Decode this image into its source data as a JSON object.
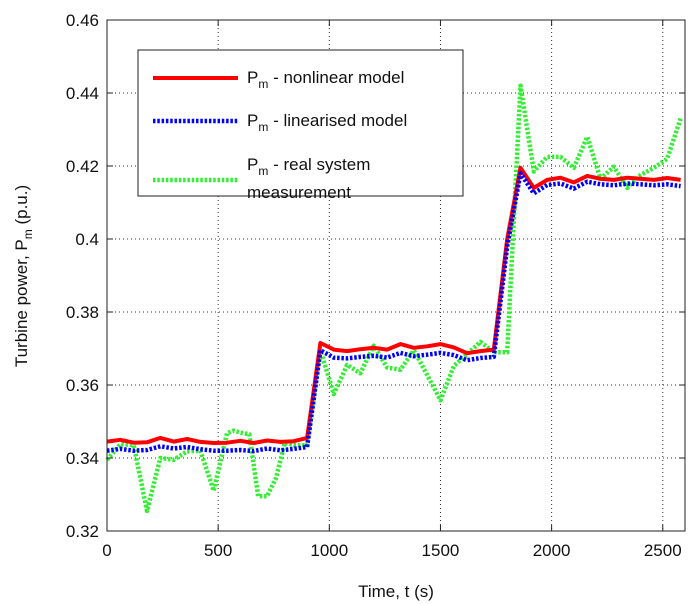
{
  "chart_data": {
    "type": "line",
    "xlabel": "Time, t (s)",
    "ylabel": {
      "base": "Turbine power, P",
      "sub": "m",
      "unit": " (p.u.)"
    },
    "xlim": [
      0,
      2600
    ],
    "ylim": [
      0.32,
      0.46
    ],
    "xticks": [
      0,
      500,
      1000,
      1500,
      2000,
      2500
    ],
    "yticks": [
      0.32,
      0.34,
      0.36,
      0.38,
      0.4,
      0.42,
      0.44,
      0.46
    ],
    "xtick_labels": [
      "0",
      "500",
      "1000",
      "1500",
      "2000",
      "2500"
    ],
    "ytick_labels": [
      "0.32",
      "0.34",
      "0.36",
      "0.38",
      "0.4",
      "0.42",
      "0.44",
      "0.46"
    ],
    "grid": true,
    "legend_position": "top-left",
    "series": [
      {
        "name": {
          "base": "P",
          "sub": "m",
          "rest": " - nonlinear model"
        },
        "color": "#ff0000",
        "style": "solid",
        "x": [
          0,
          60,
          120,
          180,
          240,
          300,
          360,
          420,
          480,
          540,
          600,
          660,
          720,
          780,
          840,
          900,
          960,
          1020,
          1080,
          1140,
          1200,
          1260,
          1320,
          1380,
          1440,
          1500,
          1560,
          1620,
          1680,
          1740,
          1800,
          1860,
          1920,
          1980,
          2040,
          2100,
          2160,
          2220,
          2280,
          2340,
          2400,
          2460,
          2520,
          2580
        ],
        "y": [
          0.3445,
          0.345,
          0.3442,
          0.3443,
          0.3455,
          0.3445,
          0.3452,
          0.3444,
          0.3441,
          0.3442,
          0.3447,
          0.3441,
          0.3448,
          0.3444,
          0.3446,
          0.3455,
          0.3715,
          0.3697,
          0.3693,
          0.3698,
          0.3702,
          0.3697,
          0.3712,
          0.3702,
          0.3706,
          0.3712,
          0.3703,
          0.3687,
          0.3693,
          0.3697,
          0.4,
          0.4195,
          0.414,
          0.4162,
          0.4168,
          0.4155,
          0.4173,
          0.4165,
          0.4162,
          0.4168,
          0.4165,
          0.4162,
          0.4167,
          0.4162
        ]
      },
      {
        "name": {
          "base": "P",
          "sub": "m",
          "rest": " - linearised model"
        },
        "color": "#0000ff",
        "style": "dotted",
        "x": [
          0,
          60,
          120,
          180,
          240,
          300,
          360,
          420,
          480,
          540,
          600,
          660,
          720,
          780,
          840,
          900,
          960,
          1020,
          1080,
          1140,
          1200,
          1260,
          1320,
          1380,
          1440,
          1500,
          1560,
          1620,
          1680,
          1740,
          1800,
          1860,
          1920,
          1980,
          2040,
          2100,
          2160,
          2220,
          2280,
          2340,
          2400,
          2460,
          2520,
          2580
        ],
        "y": [
          0.342,
          0.3425,
          0.342,
          0.3422,
          0.3432,
          0.3426,
          0.343,
          0.3424,
          0.342,
          0.342,
          0.3422,
          0.3419,
          0.3426,
          0.3421,
          0.3425,
          0.343,
          0.3695,
          0.3675,
          0.3673,
          0.3677,
          0.368,
          0.3675,
          0.3688,
          0.3679,
          0.3683,
          0.3688,
          0.3682,
          0.3668,
          0.3674,
          0.3677,
          0.398,
          0.418,
          0.4125,
          0.4148,
          0.4152,
          0.4138,
          0.4157,
          0.415,
          0.4147,
          0.4152,
          0.415,
          0.4147,
          0.415,
          0.4145
        ]
      },
      {
        "name": {
          "base": "P",
          "sub": "m",
          "rest": " - real system",
          "rest2": "measurement"
        },
        "color": "#33ee33",
        "style": "dotted",
        "x": [
          0,
          60,
          120,
          180,
          240,
          300,
          360,
          420,
          480,
          540,
          570,
          600,
          640,
          680,
          720,
          760,
          800,
          840,
          900,
          960,
          1020,
          1080,
          1140,
          1200,
          1260,
          1320,
          1380,
          1440,
          1500,
          1560,
          1620,
          1680,
          1740,
          1800,
          1860,
          1920,
          1980,
          2040,
          2100,
          2160,
          2220,
          2280,
          2340,
          2400,
          2460,
          2520,
          2580
        ],
        "y": [
          0.3395,
          0.3438,
          0.3435,
          0.3255,
          0.34,
          0.3395,
          0.3418,
          0.342,
          0.331,
          0.3468,
          0.3475,
          0.347,
          0.3465,
          0.3295,
          0.3295,
          0.3345,
          0.3442,
          0.3435,
          0.3435,
          0.3695,
          0.3575,
          0.3655,
          0.3632,
          0.3708,
          0.3648,
          0.3642,
          0.3695,
          0.3628,
          0.3558,
          0.3652,
          0.3685,
          0.3718,
          0.369,
          0.369,
          0.442,
          0.4185,
          0.4225,
          0.4225,
          0.4195,
          0.428,
          0.4165,
          0.4198,
          0.414,
          0.4175,
          0.4195,
          0.422,
          0.433
        ]
      }
    ]
  }
}
